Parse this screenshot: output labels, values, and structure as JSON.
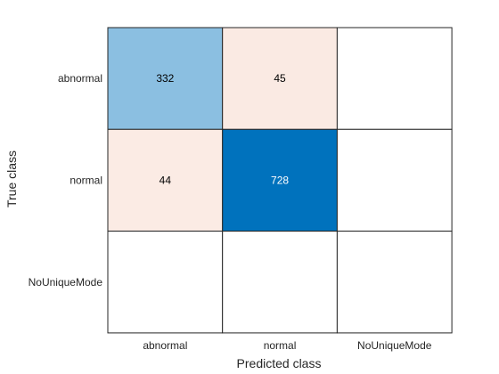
{
  "chart_data": {
    "type": "heatmap",
    "title": "",
    "xlabel": "Predicted class",
    "ylabel": "True class",
    "x_categories": [
      "abnormal",
      "normal",
      "NoUniqueMode"
    ],
    "y_categories": [
      "abnormal",
      "normal",
      "NoUniqueMode"
    ],
    "cells": [
      [
        332,
        45,
        null
      ],
      [
        44,
        728,
        null
      ],
      [
        null,
        null,
        null
      ]
    ],
    "colors": {
      "max_diagonal": "#0072bd",
      "diagonal_light": "#ffffff",
      "max_offdiagonal": "#d95319",
      "offdiagonal_light": "#ffffff",
      "empty": "#ffffff",
      "grid": "#262626",
      "text_dark": "#000000",
      "text_light": "#ffffff"
    }
  }
}
